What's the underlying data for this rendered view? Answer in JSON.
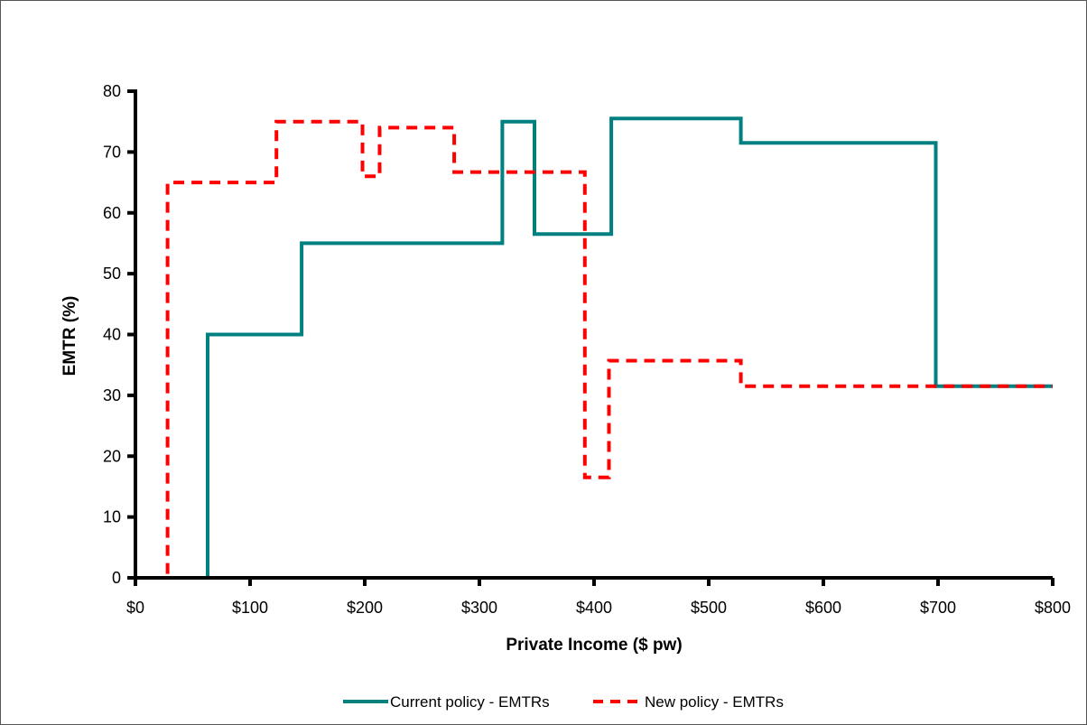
{
  "chart_data": {
    "type": "line",
    "title": "",
    "xlabel": "Private Income ($ pw)",
    "ylabel": "EMTR (%)",
    "xlim": [
      0,
      800
    ],
    "ylim": [
      0,
      80
    ],
    "x_ticks": [
      0,
      100,
      200,
      300,
      400,
      500,
      600,
      700,
      800
    ],
    "x_tick_labels": [
      "$0",
      "$100",
      "$200",
      "$300",
      "$400",
      "$500",
      "$600",
      "$700",
      "$800"
    ],
    "y_ticks": [
      0,
      10,
      20,
      30,
      40,
      50,
      60,
      70,
      80
    ],
    "y_tick_labels": [
      "0",
      "10",
      "20",
      "30",
      "40",
      "50",
      "60",
      "70",
      "80"
    ],
    "grid": false,
    "legend_position": "bottom",
    "series": [
      {
        "name": "Current policy - EMTRs",
        "color": "#008080",
        "style": "solid",
        "points": [
          [
            0,
            0
          ],
          [
            63,
            0
          ],
          [
            63,
            40
          ],
          [
            145,
            40
          ],
          [
            145,
            55
          ],
          [
            320,
            55
          ],
          [
            320,
            75
          ],
          [
            348,
            75
          ],
          [
            348,
            56.5
          ],
          [
            415,
            56.5
          ],
          [
            415,
            75.5
          ],
          [
            528,
            75.5
          ],
          [
            528,
            71.5
          ],
          [
            698,
            71.5
          ],
          [
            698,
            31.5
          ],
          [
            800,
            31.5
          ]
        ]
      },
      {
        "name": "New policy - EMTRs",
        "color": "#ff0000",
        "style": "dashed",
        "points": [
          [
            0,
            0
          ],
          [
            28,
            0
          ],
          [
            28,
            65
          ],
          [
            123,
            65
          ],
          [
            123,
            75
          ],
          [
            198,
            75
          ],
          [
            198,
            66
          ],
          [
            213,
            66
          ],
          [
            213,
            74
          ],
          [
            278,
            74
          ],
          [
            278,
            66.7
          ],
          [
            392,
            66.7
          ],
          [
            392,
            16.5
          ],
          [
            413,
            16.5
          ],
          [
            413,
            35.7
          ],
          [
            528,
            35.7
          ],
          [
            528,
            31.5
          ],
          [
            800,
            31.5
          ]
        ]
      }
    ]
  }
}
